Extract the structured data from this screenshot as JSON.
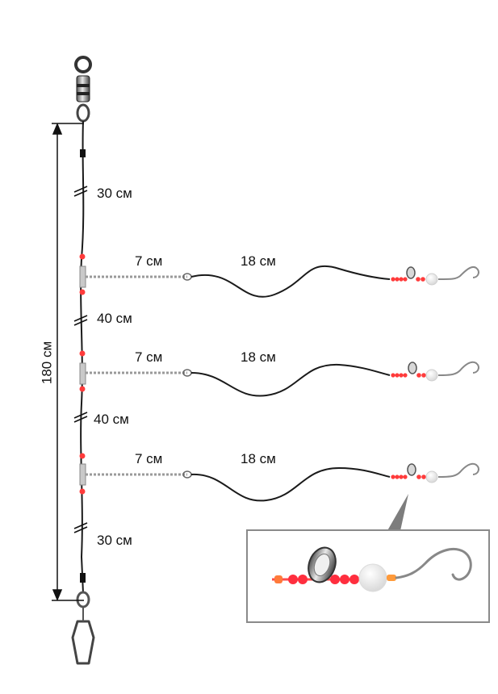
{
  "rig": {
    "total_length": "180 см",
    "segments": {
      "top": "30 см",
      "middle_1": "40 см",
      "middle_2": "40 см",
      "bottom": "30 см"
    },
    "branches": [
      {
        "twisted_length": "7 см",
        "leader_length": "18 см"
      },
      {
        "twisted_length": "7 см",
        "leader_length": "18 см"
      },
      {
        "twisted_length": "7 см",
        "leader_length": "18 см"
      }
    ]
  },
  "colors": {
    "line": "#1a1a1a",
    "bead": "#ff3b3b",
    "float_bead": "#f4f4f4",
    "metal": "#b0b0b0",
    "frame": "#8a8a8a",
    "pointer": "#7d7d7d"
  }
}
